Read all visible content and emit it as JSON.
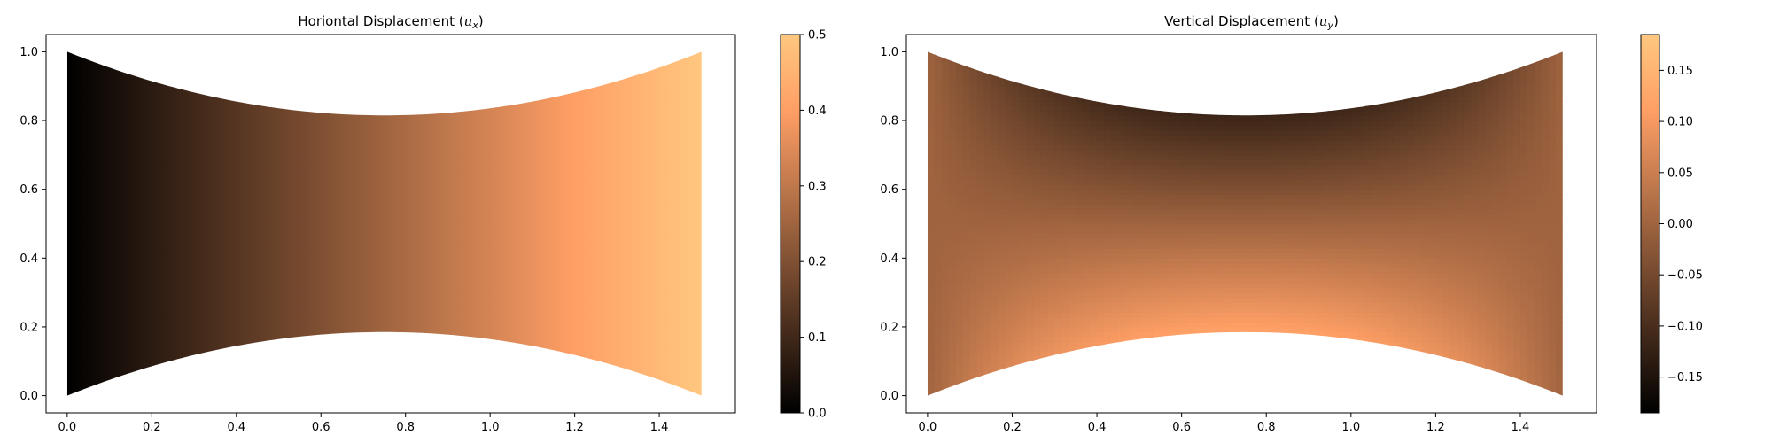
{
  "chart_data": [
    {
      "type": "heatmap",
      "title": "Horiontal Displacement (",
      "title_var": "u",
      "title_sub": "x",
      "title_end": ")",
      "xlim": [
        -0.05,
        1.58
      ],
      "ylim": [
        -0.05,
        1.05
      ],
      "xticks": [
        0.0,
        0.2,
        0.4,
        0.6,
        0.8,
        1.0,
        1.2,
        1.4
      ],
      "yticks": [
        0.0,
        0.2,
        0.4,
        0.6,
        0.8,
        1.0
      ],
      "xtick_labels": [
        "0.0",
        "0.2",
        "0.4",
        "0.6",
        "0.8",
        "1.0",
        "1.2",
        "1.4"
      ],
      "ytick_labels": [
        "0.0",
        "0.2",
        "0.4",
        "0.6",
        "0.8",
        "1.0"
      ],
      "domain": {
        "x_min": 0.0,
        "x_max": 1.5,
        "bottom_edge_max_y": 0.185,
        "top_edge_min_y": 0.815
      },
      "field": "horizontal",
      "colormap": "copper",
      "colorbar": {
        "min": 0.0,
        "max": 0.5,
        "ticks": [
          0.0,
          0.1,
          0.2,
          0.3,
          0.4,
          0.5
        ],
        "tick_labels": [
          "0.0",
          "0.1",
          "0.2",
          "0.3",
          "0.4",
          "0.5"
        ]
      }
    },
    {
      "type": "heatmap",
      "title": "Vertical Displacement (",
      "title_var": "u",
      "title_sub": "y",
      "title_end": ")",
      "xlim": [
        -0.05,
        1.58
      ],
      "ylim": [
        -0.05,
        1.05
      ],
      "xticks": [
        0.0,
        0.2,
        0.4,
        0.6,
        0.8,
        1.0,
        1.2,
        1.4
      ],
      "yticks": [
        0.0,
        0.2,
        0.4,
        0.6,
        0.8,
        1.0
      ],
      "xtick_labels": [
        "0.0",
        "0.2",
        "0.4",
        "0.6",
        "0.8",
        "1.0",
        "1.2",
        "1.4"
      ],
      "ytick_labels": [
        "0.0",
        "0.2",
        "0.4",
        "0.6",
        "0.8",
        "1.0"
      ],
      "domain": {
        "x_min": 0.0,
        "x_max": 1.5,
        "bottom_edge_max_y": 0.185,
        "top_edge_min_y": 0.815
      },
      "field": "vertical",
      "colormap": "copper",
      "colorbar": {
        "min": -0.185,
        "max": 0.185,
        "ticks": [
          -0.15,
          -0.1,
          -0.05,
          0.0,
          0.05,
          0.1,
          0.15
        ],
        "tick_labels": [
          "−0.15",
          "−0.10",
          "−0.05",
          "0.00",
          "0.05",
          "0.10",
          "0.15"
        ]
      }
    }
  ]
}
